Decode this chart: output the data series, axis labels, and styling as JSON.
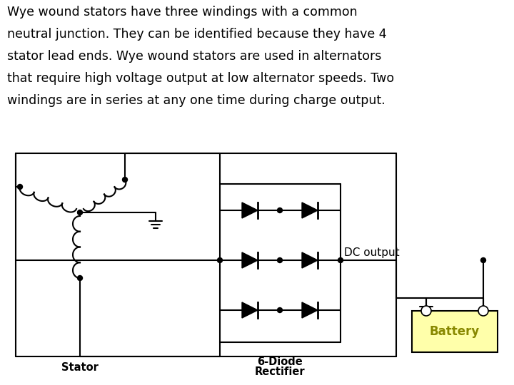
{
  "text_line1": "Wye wound stators have three windings with a common",
  "text_line2": "neutral junction. They can be identified because they have 4",
  "text_line3": "stator lead ends. Wye wound stators are used in alternators",
  "text_line4": "that require high voltage output at low alternator speeds. Two",
  "text_line5": "windings are in series at any one time during charge output.",
  "label_stator": "Stator",
  "label_rectifier_1": "6-Diode",
  "label_rectifier_2": "Rectifier",
  "label_dc_output": "DC output",
  "label_battery": "Battery",
  "bg_color": "#ffffff",
  "text_color": "#000000",
  "battery_fill": "#ffffaa",
  "battery_text_color": "#888800",
  "line_color": "#000000",
  "font_size_text": 12.5,
  "font_size_label": 10.5,
  "font_size_dc": 11,
  "font_size_battery": 12
}
